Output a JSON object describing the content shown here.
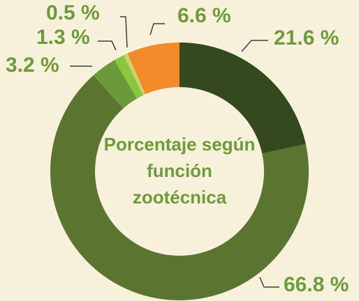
{
  "chart_data": {
    "type": "donut",
    "title": "Porcentaje según función zootécnica",
    "categories": [
      null,
      null,
      null,
      null,
      null,
      null
    ],
    "values": [
      21.6,
      66.8,
      3.2,
      1.3,
      0.5,
      6.6
    ],
    "value_labels": [
      "21.6 %",
      "66.8 %",
      "3.2 %",
      "1.3 %",
      "0.5 %",
      "6.6 %"
    ],
    "colors": [
      "#34491e",
      "#5b7530",
      "#6a9a3c",
      "#8cc63f",
      "#c9d36a",
      "#f28a2a"
    ]
  }
}
